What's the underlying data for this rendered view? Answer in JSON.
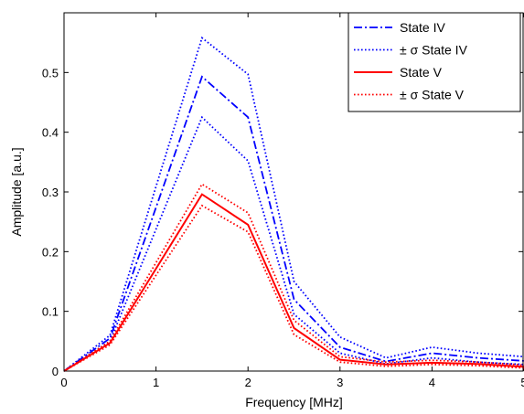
{
  "chart_data": {
    "type": "line",
    "xlabel": "Frequency [MHz]",
    "ylabel": "Amplitude [a.u.]",
    "xlim": [
      0,
      5
    ],
    "ylim": [
      0,
      0.6
    ],
    "xticks": [
      "0",
      "1",
      "2",
      "3",
      "4",
      "5"
    ],
    "yticks": [
      "0",
      "0.1",
      "0.2",
      "0.3",
      "0.4",
      "0.5"
    ],
    "grid": false,
    "legend_position": "top-right",
    "x": [
      0,
      0.5,
      1.5,
      2,
      2.5,
      3,
      3.5,
      4,
      4.5,
      5
    ],
    "series": [
      {
        "name": "State IV",
        "color": "#0000ff",
        "style": "dashdot",
        "legend": true,
        "values": [
          0,
          0.055,
          0.493,
          0.425,
          0.12,
          0.04,
          0.016,
          0.03,
          0.022,
          0.017
        ]
      },
      {
        "name": "± σ State IV",
        "color": "#0000ff",
        "style": "dotted",
        "legend": true,
        "values": [
          0,
          0.06,
          0.558,
          0.497,
          0.15,
          0.057,
          0.022,
          0.04,
          0.03,
          0.024
        ]
      },
      {
        "name": "± σ State IV",
        "color": "#0000ff",
        "style": "dotted",
        "legend": false,
        "values": [
          0,
          0.05,
          0.425,
          0.352,
          0.095,
          0.03,
          0.012,
          0.022,
          0.015,
          0.011
        ]
      },
      {
        "name": "State V",
        "color": "#ff0000",
        "style": "solid",
        "legend": true,
        "values": [
          0,
          0.047,
          0.296,
          0.245,
          0.072,
          0.019,
          0.011,
          0.014,
          0.012,
          0.007
        ]
      },
      {
        "name": "± σ State V",
        "color": "#ff0000",
        "style": "dotted",
        "legend": true,
        "values": [
          0,
          0.05,
          0.313,
          0.265,
          0.085,
          0.024,
          0.015,
          0.018,
          0.015,
          0.01
        ]
      },
      {
        "name": "± σ State V",
        "color": "#ff0000",
        "style": "dotted",
        "legend": false,
        "values": [
          0,
          0.044,
          0.277,
          0.233,
          0.061,
          0.015,
          0.008,
          0.011,
          0.009,
          0.005
        ]
      }
    ]
  }
}
